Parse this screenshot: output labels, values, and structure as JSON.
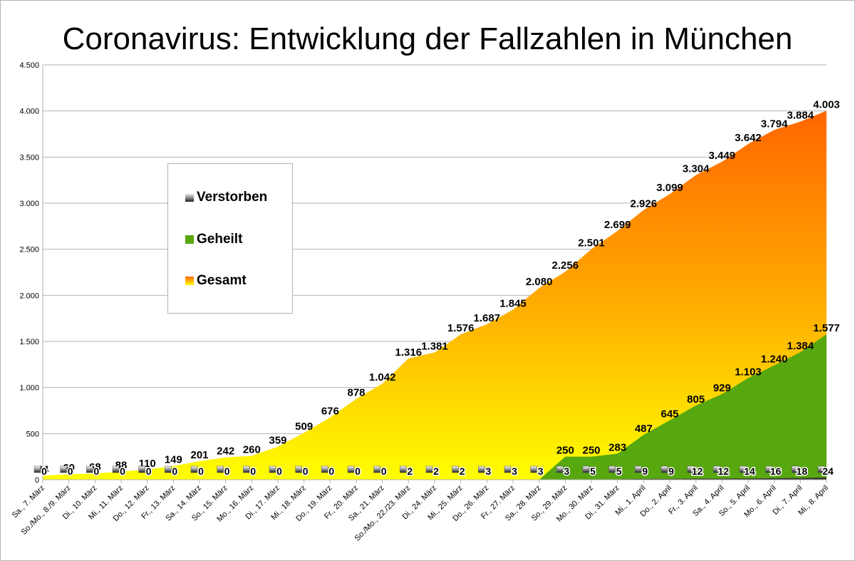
{
  "chart_data": {
    "type": "area",
    "title": "Coronavirus: Entwicklung der Fallzahlen in München",
    "xlabel": "",
    "ylabel": "",
    "ylim": [
      0,
      4500
    ],
    "yticks": [
      0,
      500,
      1000,
      1500,
      2000,
      2500,
      3000,
      3500,
      4000,
      4500
    ],
    "ytick_labels": [
      "0",
      "500",
      "1.000",
      "1.500",
      "2.000",
      "2.500",
      "3.000",
      "3.500",
      "4.000",
      "4.500"
    ],
    "grid": true,
    "legend_position": "left-center",
    "categories": [
      "Sa., 7. März",
      "So./Mo., 8./9. März",
      "Di., 10. März",
      "Mi., 11. März",
      "Do., 12. März",
      "Fr., 13. März",
      "Sa., 14. März",
      "So., 15. März",
      "Mo., 16. März",
      "Di., 17. März",
      "Mi., 18. März",
      "Do., 19. März",
      "Fr., 20. März",
      "Sa., 21. März",
      "So./Mo., 22./23. März",
      "Di., 24. März",
      "Mi., 25. März",
      "Do., 26. März",
      "Fr., 27. März",
      "Sa., 28. März",
      "So., 29. März",
      "Mo., 30. März",
      "Di., 31. März",
      "Mi., 1. April",
      "Do., 2. April",
      "Fr., 3. April",
      "Sa., 4. April",
      "So., 5. April",
      "Mo., 6. April",
      "Di., 7. April",
      "Mi., 8. April"
    ],
    "series": [
      {
        "name": "Gesamt",
        "color_top": "#ff6600",
        "color_bottom": "#ffff00",
        "values": [
          44,
          60,
          68,
          88,
          110,
          149,
          201,
          242,
          260,
          359,
          509,
          676,
          878,
          1042,
          1316,
          1381,
          1576,
          1687,
          1845,
          2080,
          2256,
          2501,
          2699,
          2926,
          3099,
          3304,
          3449,
          3642,
          3794,
          3884,
          4003
        ],
        "labels": [
          "44",
          "60",
          "68",
          "88",
          "110",
          "149",
          "201",
          "242",
          "260",
          "359",
          "509",
          "676",
          "878",
          "1.042",
          "1.316",
          "1.381",
          "1.576",
          "1.687",
          "1.845",
          "2.080",
          "2.256",
          "2.501",
          "2.699",
          "2.926",
          "3.099",
          "3.304",
          "3.449",
          "3.642",
          "3.794",
          "3.884",
          "4.003"
        ]
      },
      {
        "name": "Geheilt",
        "color": "#57a70f",
        "values": [
          0,
          0,
          0,
          0,
          0,
          0,
          0,
          0,
          0,
          0,
          0,
          0,
          0,
          0,
          0,
          0,
          0,
          0,
          0,
          0,
          250,
          250,
          283,
          487,
          645,
          805,
          929,
          1103,
          1240,
          1384,
          1577
        ],
        "labels": [
          "",
          "",
          "",
          "",
          "",
          "",
          "",
          "",
          "",
          "",
          "",
          "",
          "",
          "",
          "",
          "",
          "",
          "",
          "",
          "",
          "250",
          "250",
          "283",
          "487",
          "645",
          "805",
          "929",
          "1.103",
          "1.240",
          "1.384",
          "1.577"
        ]
      },
      {
        "name": "Verstorben",
        "color": "#333333",
        "values": [
          0,
          0,
          0,
          0,
          0,
          0,
          0,
          0,
          0,
          0,
          0,
          0,
          0,
          0,
          2,
          2,
          2,
          3,
          3,
          3,
          3,
          5,
          5,
          9,
          9,
          12,
          12,
          14,
          16,
          18,
          24
        ],
        "labels": [
          "0",
          "0",
          "0",
          "0",
          "0",
          "0",
          "0",
          "0",
          "0",
          "0",
          "0",
          "0",
          "0",
          "0",
          "2",
          "2",
          "2",
          "3",
          "3",
          "3",
          "3",
          "5",
          "5",
          "9",
          "9",
          "12",
          "12",
          "14",
          "16",
          "18",
          "24"
        ]
      }
    ]
  },
  "legend": {
    "items": [
      {
        "label": "Verstorben",
        "color": "#333333"
      },
      {
        "label": "Geheilt",
        "color": "#57a70f"
      },
      {
        "label": "Gesamt",
        "color": "#ff8800"
      }
    ]
  }
}
